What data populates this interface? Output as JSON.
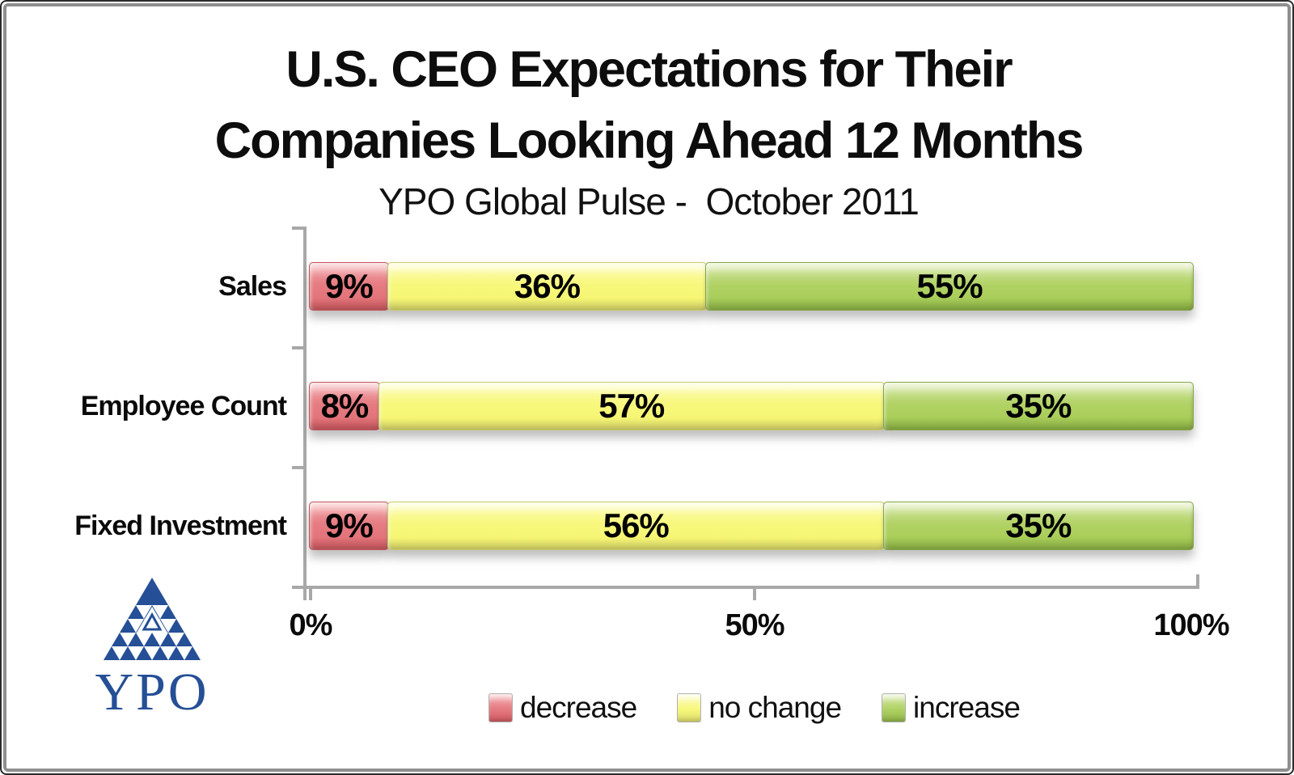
{
  "header": {
    "title_line1": "U.S. CEO Expectations for Their",
    "title_line2": "Companies Looking Ahead 12 Months",
    "subtitle": "YPO Global Pulse -  October 2011"
  },
  "chart_data": {
    "type": "bar",
    "orientation": "horizontal",
    "stacked": true,
    "title": "U.S. CEO Expectations for Their Companies Looking Ahead 12 Months",
    "subtitle": "YPO Global Pulse - October 2011",
    "categories": [
      "Sales",
      "Employee Count",
      "Fixed Investment"
    ],
    "series": [
      {
        "name": "decrease",
        "color": "#E4767C",
        "values": [
          9,
          8,
          9
        ]
      },
      {
        "name": "no change",
        "color": "#F7F77D",
        "values": [
          36,
          57,
          56
        ]
      },
      {
        "name": "increase",
        "color": "#ADD05F",
        "values": [
          55,
          35,
          35
        ]
      }
    ],
    "value_labels": [
      [
        "9%",
        "36%",
        "55%"
      ],
      [
        "8%",
        "57%",
        "35%"
      ],
      [
        "9%",
        "56%",
        "35%"
      ]
    ],
    "x_axis": {
      "ticks": [
        "0%",
        "50%",
        "100%"
      ],
      "range": [
        0,
        100
      ],
      "grid": false
    },
    "legend": {
      "position": "bottom",
      "items": [
        "decrease",
        "no change",
        "increase"
      ]
    }
  },
  "logo": {
    "text": "YPO",
    "color": "#254F96",
    "symbol": "triangle-of-triangles"
  }
}
